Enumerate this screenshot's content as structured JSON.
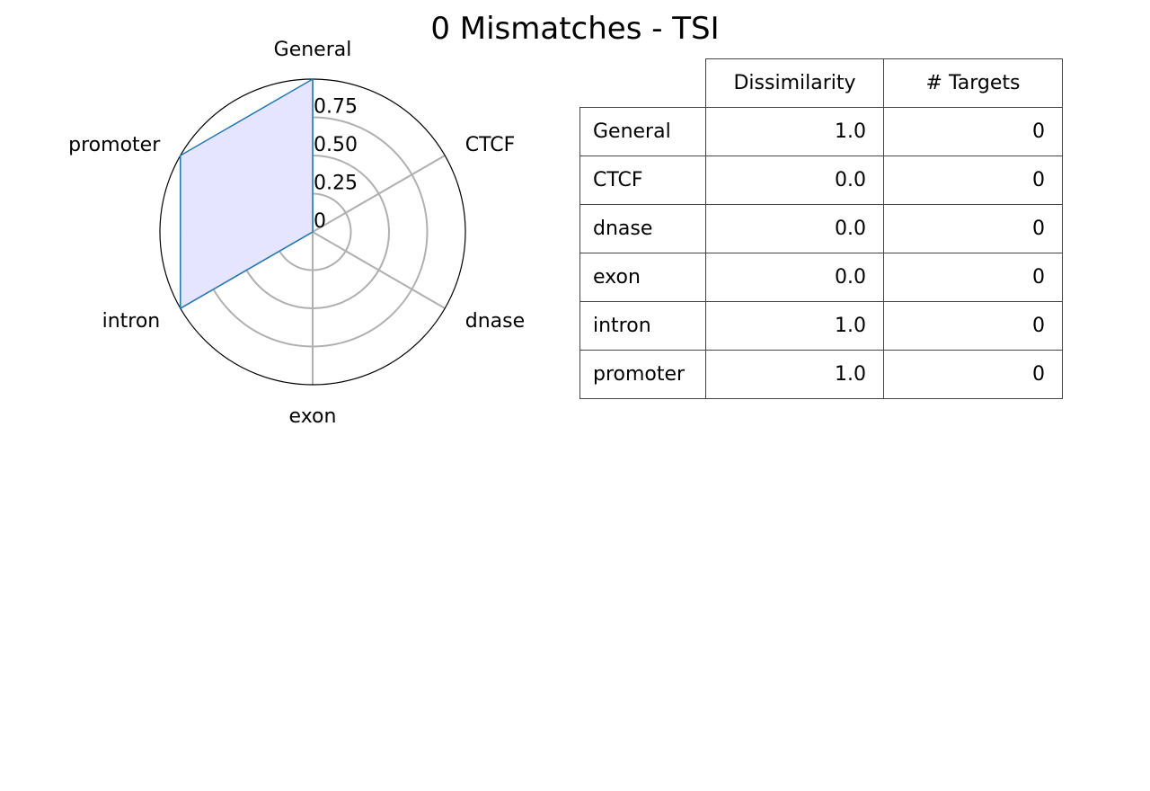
{
  "chart_data": [
    {
      "type": "radar",
      "title": "0 Mismatches - TSI",
      "categories": [
        "General",
        "CTCF",
        "dnase",
        "exon",
        "intron",
        "promoter"
      ],
      "series": [
        {
          "values": [
            1.0,
            0.0,
            0.0,
            0.0,
            1.0,
            1.0
          ],
          "color": "#1f77b4",
          "fill": "#e5e5ff"
        }
      ],
      "rlim": [
        0,
        1
      ],
      "r_ticks": [
        0,
        0.25,
        0.5,
        0.75
      ],
      "r_tick_labels": [
        "0",
        "0.25",
        "0.50",
        "0.75"
      ],
      "grid": true
    },
    {
      "type": "table",
      "columns": [
        "Dissimilarity",
        "# Targets"
      ],
      "rows": [
        {
          "label": "General",
          "values": [
            "1.0",
            "0"
          ]
        },
        {
          "label": "CTCF",
          "values": [
            "0.0",
            "0"
          ]
        },
        {
          "label": "dnase",
          "values": [
            "0.0",
            "0"
          ]
        },
        {
          "label": "exon",
          "values": [
            "0.0",
            "0"
          ]
        },
        {
          "label": "intron",
          "values": [
            "1.0",
            "0"
          ]
        },
        {
          "label": "promoter",
          "values": [
            "1.0",
            "0"
          ]
        }
      ]
    }
  ]
}
